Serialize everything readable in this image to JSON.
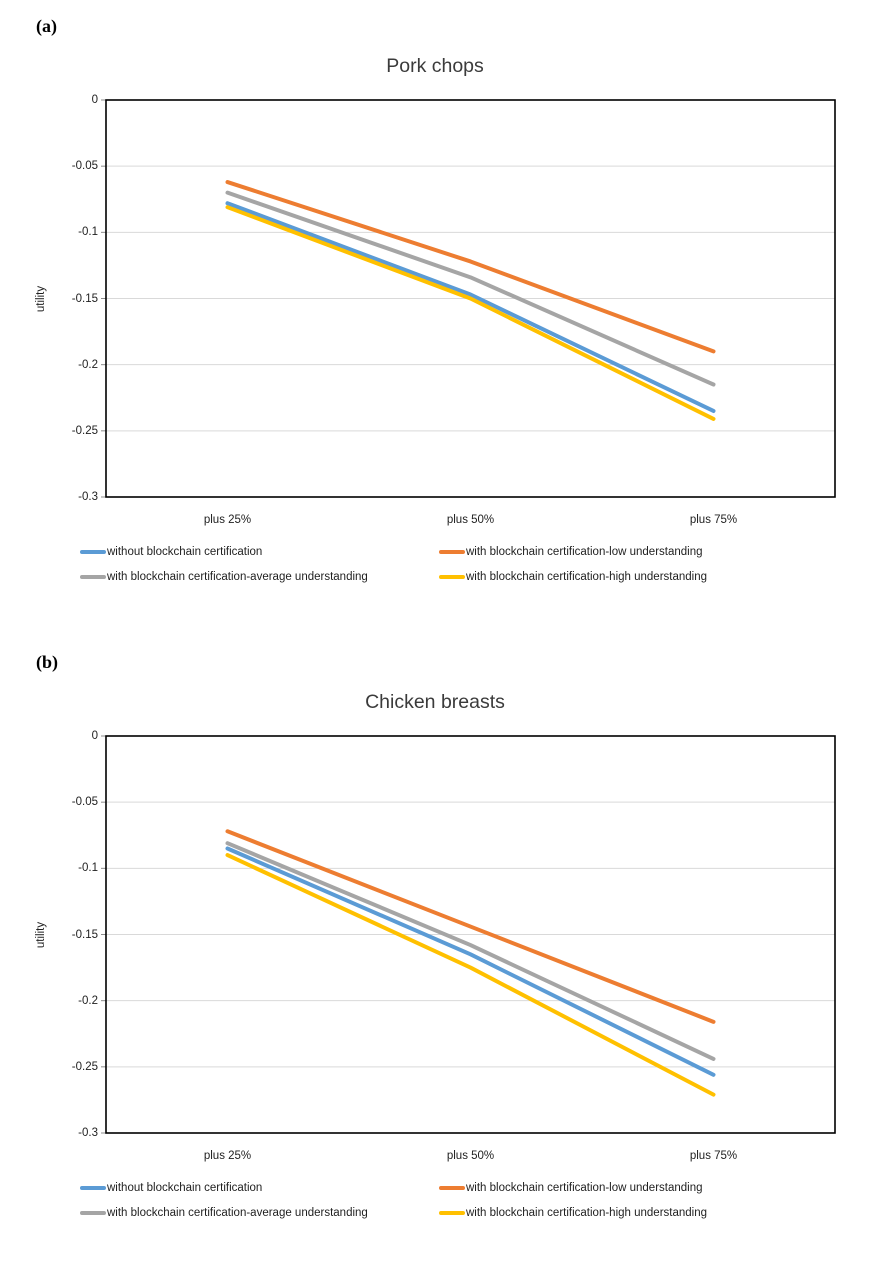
{
  "page": {
    "background": "#ffffff"
  },
  "chart_data": [
    {
      "type": "line",
      "panel_label": "(a)",
      "title": "Pork chops",
      "xlabel": "",
      "ylabel": "utility",
      "categories": [
        "plus 25%",
        "plus 50%",
        "plus 75%"
      ],
      "series": [
        {
          "name": "without blockchain certification",
          "color": "#5B9BD5",
          "values": [
            -0.078,
            -0.147,
            -0.235
          ]
        },
        {
          "name": "with blockchain certification-low understanding",
          "color": "#ED7D31",
          "values": [
            -0.062,
            -0.122,
            -0.19
          ]
        },
        {
          "name": "with blockchain certification-average understanding",
          "color": "#A5A5A5",
          "values": [
            -0.07,
            -0.134,
            -0.215
          ]
        },
        {
          "name": "with blockchain certification-high understanding",
          "color": "#FFC000",
          "values": [
            -0.081,
            -0.15,
            -0.241
          ]
        }
      ],
      "ylim": [
        -0.3,
        0
      ],
      "yticks": [
        0,
        -0.05,
        -0.1,
        -0.15,
        -0.2,
        -0.25,
        -0.3
      ],
      "ytick_labels": [
        "0",
        "-0.05",
        "-0.1",
        "-0.15",
        "-0.2",
        "-0.25",
        "-0.3"
      ],
      "grid": true,
      "legend_position": "bottom",
      "legend_rows": [
        [
          0,
          1
        ],
        [
          2,
          3
        ]
      ]
    },
    {
      "type": "line",
      "panel_label": "(b)",
      "title": "Chicken breasts",
      "xlabel": "",
      "ylabel": "utility",
      "categories": [
        "plus 25%",
        "plus 50%",
        "plus 75%"
      ],
      "series": [
        {
          "name": "without blockchain certification",
          "color": "#5B9BD5",
          "values": [
            -0.085,
            -0.165,
            -0.256
          ]
        },
        {
          "name": "with blockchain certification-low understanding",
          "color": "#ED7D31",
          "values": [
            -0.072,
            -0.144,
            -0.216
          ]
        },
        {
          "name": "with blockchain certification-average understanding",
          "color": "#A5A5A5",
          "values": [
            -0.081,
            -0.158,
            -0.244
          ]
        },
        {
          "name": "with blockchain certification-high understanding",
          "color": "#FFC000",
          "values": [
            -0.09,
            -0.175,
            -0.271
          ]
        }
      ],
      "ylim": [
        -0.3,
        0
      ],
      "yticks": [
        0,
        -0.05,
        -0.1,
        -0.15,
        -0.2,
        -0.25,
        -0.3
      ],
      "ytick_labels": [
        "0",
        "-0.05",
        "-0.1",
        "-0.15",
        "-0.2",
        "-0.25",
        "-0.3"
      ],
      "grid": true,
      "legend_position": "bottom",
      "legend_rows": [
        [
          0,
          1
        ],
        [
          2,
          3
        ]
      ]
    }
  ],
  "style_colors": {
    "gridline": "#D9D9D9",
    "axis_border": "#000000",
    "tick_mark": "#8c8c8c",
    "text": "#1f1f1f",
    "title_text": "#3b3b3b"
  }
}
